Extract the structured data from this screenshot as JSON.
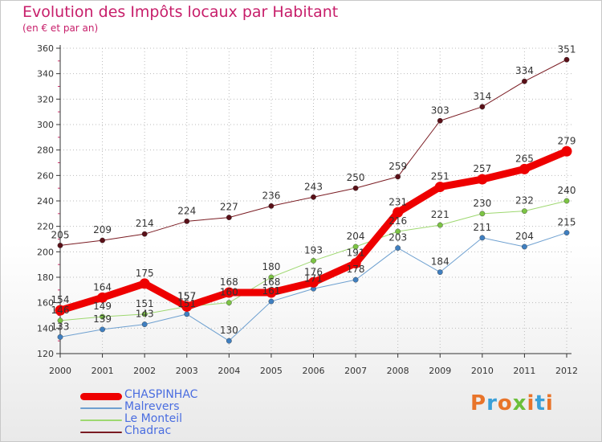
{
  "title": "Evolution des Impôts locaux par Habitant",
  "subtitle": "(en € et par an)",
  "logo": "Proxiti",
  "colors": {
    "title": "#c71e6a",
    "axis": "#333333",
    "grid": "#bbbbbb",
    "legend_text": "#4a6de0"
  },
  "chart_data": {
    "type": "line",
    "title": "Evolution des Impôts locaux par Habitant",
    "subtitle": "(en € et par an)",
    "xlabel": "",
    "ylabel": "",
    "ylim": [
      120,
      360
    ],
    "yticks": [
      120,
      140,
      160,
      180,
      200,
      220,
      240,
      260,
      280,
      300,
      320,
      340,
      360
    ],
    "grid": true,
    "legend_position": "bottom-left",
    "categories": [
      "2000",
      "2001",
      "2002",
      "2003",
      "2004",
      "2005",
      "2006",
      "2007",
      "2008",
      "2009",
      "2010",
      "2011",
      "2012"
    ],
    "series": [
      {
        "name": "Chadrac",
        "color": "#7a1b22",
        "marker": "#5a1018",
        "width": 1,
        "values": [
          205,
          209,
          214,
          224,
          227,
          236,
          243,
          250,
          259,
          303,
          314,
          334,
          351
        ],
        "labels": [
          "205",
          "209",
          "214",
          "224",
          "227",
          "236",
          "243",
          "250",
          "259",
          "303",
          "314",
          "334",
          "351"
        ]
      },
      {
        "name": "Malrevers",
        "color": "#6ea0d0",
        "marker": "#3f7fc0",
        "width": 1,
        "values": [
          133,
          139,
          143,
          151,
          130,
          161,
          171,
          178,
          203,
          184,
          211,
          204,
          215
        ],
        "labels": [
          "133",
          "139",
          "143",
          "151",
          "130",
          "161",
          "171",
          "178",
          "203",
          "184",
          "211",
          "204",
          "215"
        ]
      },
      {
        "name": "Le Monteil",
        "color": "#9ed870",
        "marker": "#7cc444",
        "width": 1,
        "values": [
          146,
          149,
          151,
          157,
          160,
          180,
          193,
          204,
          216,
          221,
          230,
          232,
          240
        ],
        "labels": [
          "146",
          "149",
          "151",
          "157",
          "160",
          "180",
          "193",
          "204",
          "216",
          "221",
          "230",
          "232",
          "240"
        ]
      },
      {
        "name": "CHASPINHAC",
        "color": "#ee0000",
        "marker": "#ee0000",
        "width": 9,
        "values": [
          154,
          164,
          175,
          157,
          168,
          168,
          176,
          191,
          231,
          251,
          257,
          265,
          279
        ],
        "labels": [
          "154",
          "164",
          "175",
          "157",
          "168",
          "168",
          "176",
          "191",
          "231",
          "251",
          "257",
          "265",
          "279"
        ]
      }
    ]
  },
  "legend": [
    {
      "label": "CHASPINHAC",
      "color": "#ee0000",
      "thickness": 9
    },
    {
      "label": "Malrevers",
      "color": "#6ea0d0",
      "thickness": 2
    },
    {
      "label": "Le Monteil",
      "color": "#9ed870",
      "thickness": 2
    },
    {
      "label": "Chadrac",
      "color": "#7a1b22",
      "thickness": 2
    }
  ]
}
